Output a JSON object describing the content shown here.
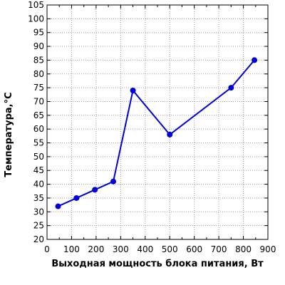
{
  "chart_data": {
    "type": "line",
    "xlabel": "Выходная мощность блока питания, Вт",
    "ylabel": "Температура,°C",
    "xlim": [
      0,
      900
    ],
    "ylim": [
      20,
      105
    ],
    "x_ticks": [
      "0",
      "100",
      "200",
      "300",
      "400",
      "500",
      "600",
      "700",
      "800",
      "900"
    ],
    "y_ticks": [
      "20",
      "25",
      "30",
      "35",
      "40",
      "45",
      "50",
      "55",
      "60",
      "65",
      "70",
      "75",
      "80",
      "85",
      "90",
      "95",
      "100",
      "105"
    ],
    "grid": true,
    "series": [
      {
        "x": [
          45,
          120,
          195,
          270,
          350,
          500,
          750,
          845
        ],
        "y": [
          32,
          35,
          38,
          41,
          74,
          58,
          75,
          85
        ],
        "color": "#0000dd"
      }
    ]
  }
}
